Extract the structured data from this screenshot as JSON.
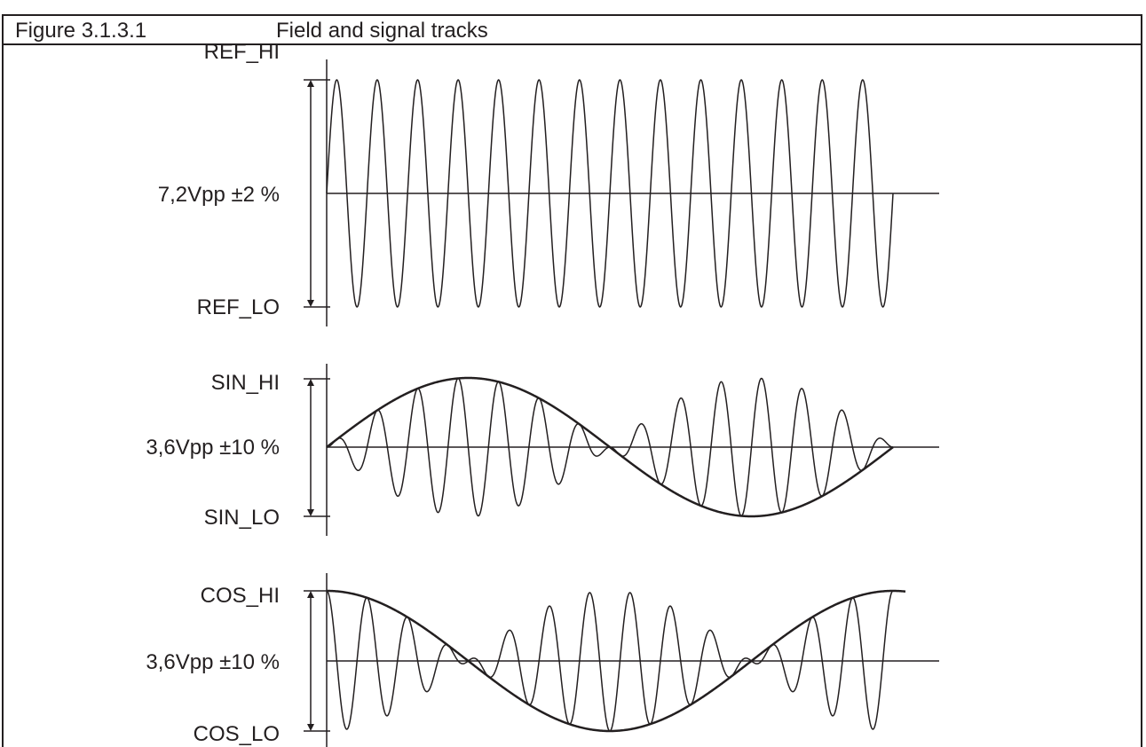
{
  "figure": {
    "number": "Figure 3.1.3.1",
    "title": "Field and signal tracks"
  },
  "tracks": [
    {
      "name": "ref-track",
      "hi_label": "REF_HI",
      "amplitude_label": "7,2Vpp ±2 %",
      "lo_label": "REF_LO",
      "cycles": 14
    },
    {
      "name": "sin-track",
      "hi_label": "SIN_HI",
      "amplitude_label": "3,6Vpp ±10 %",
      "lo_label": "SIN_LO",
      "cycles": 14,
      "envelope": "sine"
    },
    {
      "name": "cos-track",
      "hi_label": "COS_HI",
      "amplitude_label": "3,6Vpp ±10 %",
      "lo_label": "COS_LO",
      "cycles": 14,
      "envelope": "cosine"
    }
  ],
  "colors": {
    "line": "#231f20",
    "background": "#ffffff"
  }
}
